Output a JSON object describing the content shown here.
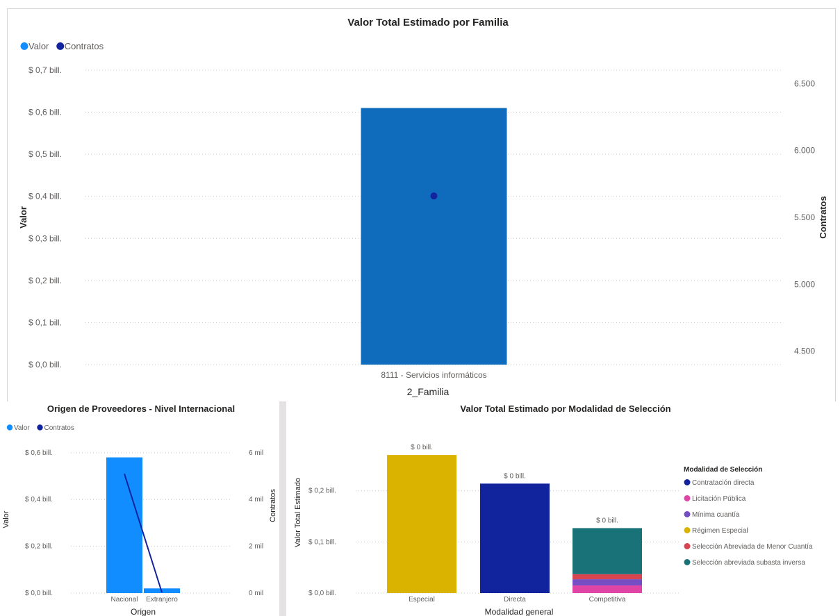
{
  "chart_data": [
    {
      "type": "bar",
      "title": "Valor Total Estimado por Familia",
      "legend": {
        "position": "top-left",
        "items": [
          {
            "label": "Valor",
            "color": "#118DFF"
          },
          {
            "label": "Contratos",
            "color": "#12239E"
          }
        ]
      },
      "xlabel": "2_Familia",
      "ylabel": "Valor",
      "y2label": "Contratos",
      "categories": [
        "8111 - Servicios informáticos"
      ],
      "series": [
        {
          "name": "Valor",
          "kind": "bar",
          "axis": "left",
          "values": [
            0.61
          ],
          "color": "#0F6CBD"
        },
        {
          "name": "Contratos",
          "kind": "point",
          "axis": "right",
          "values": [
            5660
          ],
          "color": "#12239E"
        }
      ],
      "ylim": [
        0,
        0.7
      ],
      "y_ticks": [
        0,
        0.1,
        0.2,
        0.3,
        0.4,
        0.5,
        0.6,
        0.7
      ],
      "y_tick_labels": [
        "$ 0,0 bill.",
        "$ 0,1 bill.",
        "$ 0,2 bill.",
        "$ 0,3 bill.",
        "$ 0,4 bill.",
        "$ 0,5 bill.",
        "$ 0,6 bill.",
        "$ 0,7 bill."
      ],
      "y2lim": [
        4400,
        6600
      ],
      "y2_ticks": [
        4500,
        5000,
        5500,
        6000,
        6500
      ],
      "y2_tick_labels": [
        "4.500",
        "5.000",
        "5.500",
        "6.000",
        "6.500"
      ],
      "grid": true
    },
    {
      "type": "bar",
      "title": "Origen de Proveedores - Nivel Internacional",
      "legend": {
        "position": "top-left",
        "items": [
          {
            "label": "Valor",
            "color": "#118DFF"
          },
          {
            "label": "Contratos",
            "color": "#12239E"
          }
        ]
      },
      "xlabel": "Origen",
      "ylabel": "Valor",
      "y2label": "Contratos",
      "categories": [
        "Nacional",
        "Extranjero"
      ],
      "series": [
        {
          "name": "Valor",
          "kind": "bar",
          "axis": "left",
          "values": [
            0.58,
            0.02
          ],
          "color": "#118DFF"
        },
        {
          "name": "Contratos",
          "kind": "line",
          "axis": "right",
          "values": [
            5100,
            30
          ],
          "color": "#12239E"
        }
      ],
      "ylim": [
        0,
        0.65
      ],
      "y_ticks": [
        0,
        0.2,
        0.4,
        0.6
      ],
      "y_tick_labels": [
        "$ 0,0 bill.",
        "$ 0,2 bill.",
        "$ 0,4 bill.",
        "$ 0,6 bill."
      ],
      "y2lim": [
        0,
        6500
      ],
      "y2_ticks": [
        0,
        2000,
        4000,
        6000
      ],
      "y2_tick_labels": [
        "0 mil",
        "2 mil",
        "4 mil",
        "6 mil"
      ],
      "grid": true
    },
    {
      "type": "bar",
      "stacked": true,
      "title": "Valor Total Estimado por Modalidad de Selección",
      "xlabel": "Modalidad general",
      "ylabel": "Valor Total Estimado",
      "categories": [
        "Especial",
        "Directa",
        "Competitiva"
      ],
      "data_labels": [
        "$ 0 bill.",
        "$ 0 bill.",
        "$ 0 bill."
      ],
      "series": [
        {
          "name": "Régimen Especial",
          "color": "#D9B300",
          "values": [
            0.27,
            0,
            0
          ]
        },
        {
          "name": "Contratación directa",
          "color": "#12239E",
          "values": [
            0,
            0.214,
            0
          ]
        },
        {
          "name": "Licitación Pública",
          "color": "#E044A7",
          "values": [
            0,
            0,
            0.015
          ]
        },
        {
          "name": "Mínima cuantía",
          "color": "#744EC2",
          "values": [
            0,
            0,
            0.012
          ]
        },
        {
          "name": "Selección Abreviada de Menor Cuantía",
          "color": "#D64550",
          "values": [
            0,
            0,
            0.01
          ]
        },
        {
          "name": "Selección abreviada subasta inversa",
          "color": "#197278",
          "values": [
            0,
            0,
            0.09
          ]
        }
      ],
      "legend": {
        "title": "Modalidad de Selección",
        "position": "right",
        "items": [
          {
            "label": "Contratación directa",
            "color": "#12239E"
          },
          {
            "label": "Licitación Pública",
            "color": "#E044A7"
          },
          {
            "label": "Mínima cuantía",
            "color": "#744EC2"
          },
          {
            "label": "Régimen Especial",
            "color": "#D9B300"
          },
          {
            "label": "Selección Abreviada de Menor Cuantía",
            "color": "#D64550"
          },
          {
            "label": "Selección abreviada subasta inversa",
            "color": "#197278"
          }
        ]
      },
      "ylim": [
        0,
        0.3
      ],
      "y_ticks": [
        0,
        0.1,
        0.2
      ],
      "y_tick_labels": [
        "$ 0,0 bill.",
        "$ 0,1 bill.",
        "$ 0,2 bill."
      ],
      "grid": true
    }
  ]
}
